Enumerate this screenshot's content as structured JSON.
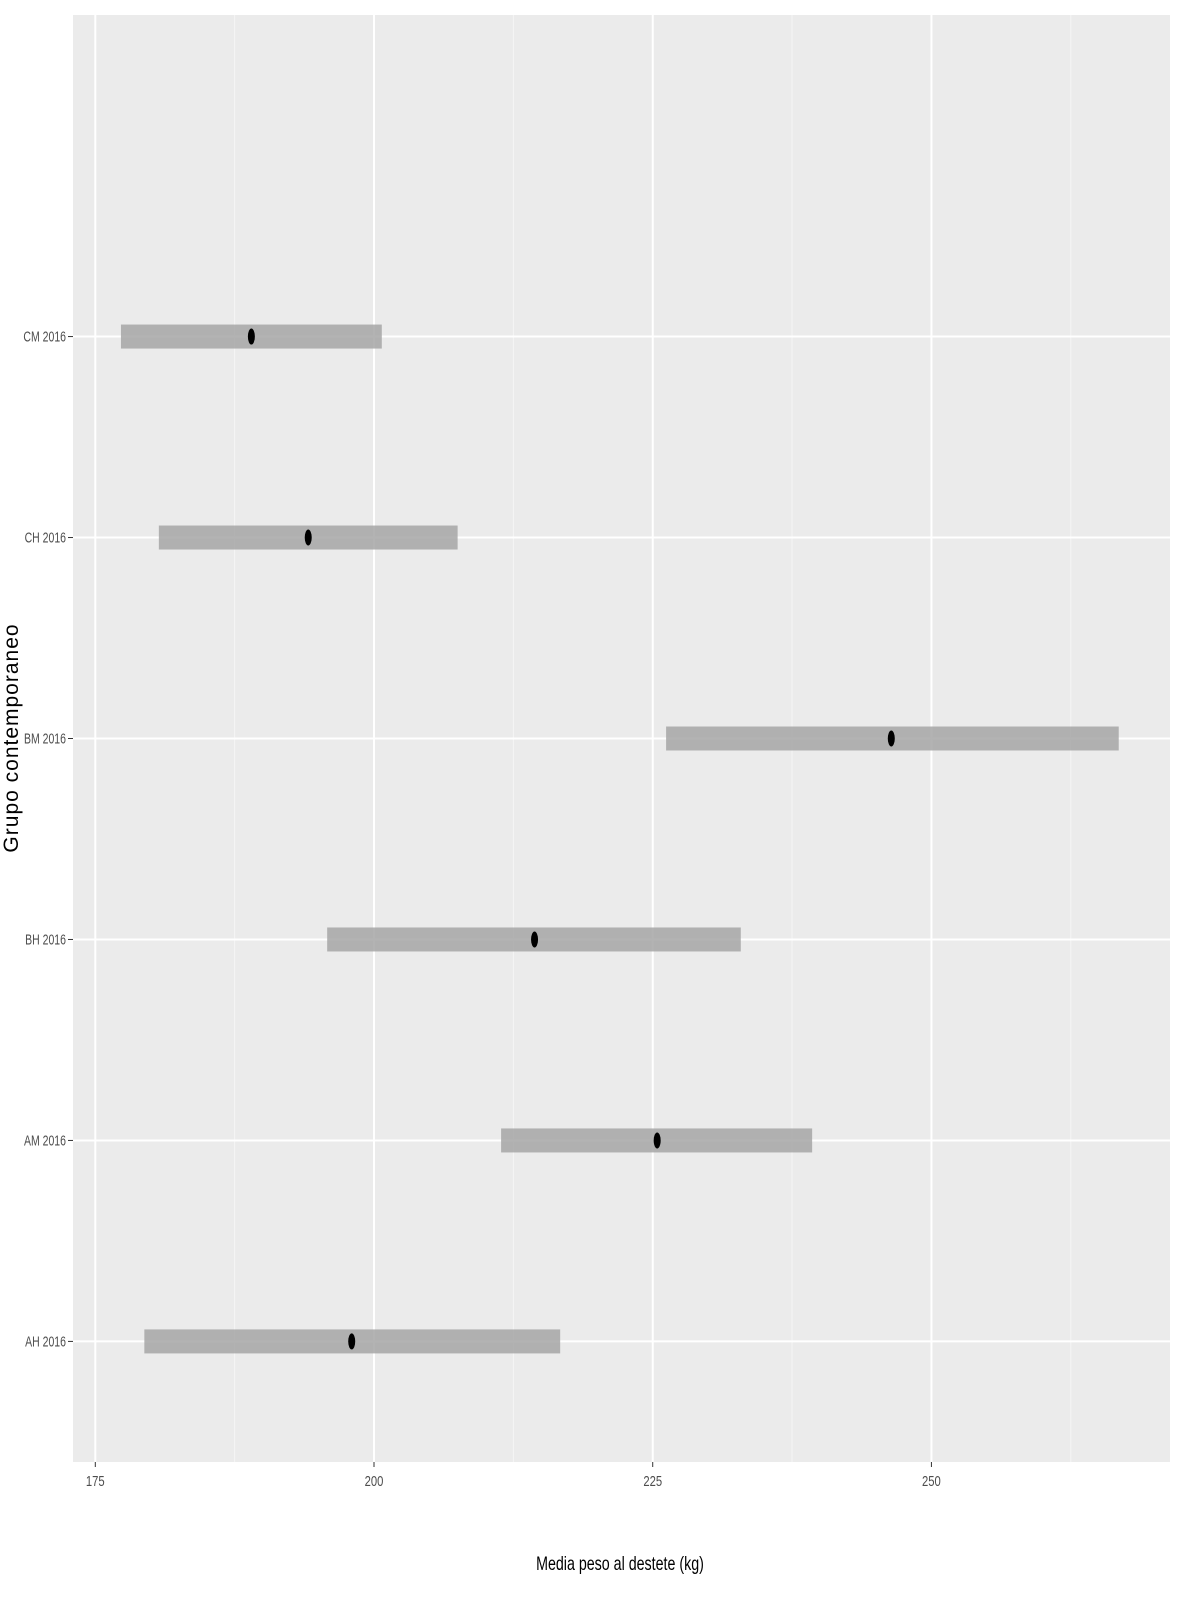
{
  "chart_data": {
    "type": "interval",
    "xlabel": "Media peso al destete (kg)",
    "ylabel": "Grupo contemporaneo",
    "categories": [
      "AH 2016",
      "AM 2016",
      "BH 2016",
      "BM 2016",
      "CH 2016",
      "CM 2016"
    ],
    "values": [
      198.0,
      225.4,
      214.4,
      246.4,
      194.1,
      189.0
    ],
    "lower": [
      179.4,
      211.4,
      195.8,
      226.2,
      180.7,
      177.3
    ],
    "upper": [
      216.7,
      239.3,
      232.9,
      266.8,
      207.5,
      200.7
    ],
    "point_color": "#000000",
    "range_color": "#a6a6a6",
    "xlim": [
      173,
      271.4
    ],
    "xticks": [
      175,
      200,
      225,
      250
    ],
    "minor_xticks": [
      187.5,
      212.5,
      237.5,
      262.5
    ],
    "grid": true
  }
}
